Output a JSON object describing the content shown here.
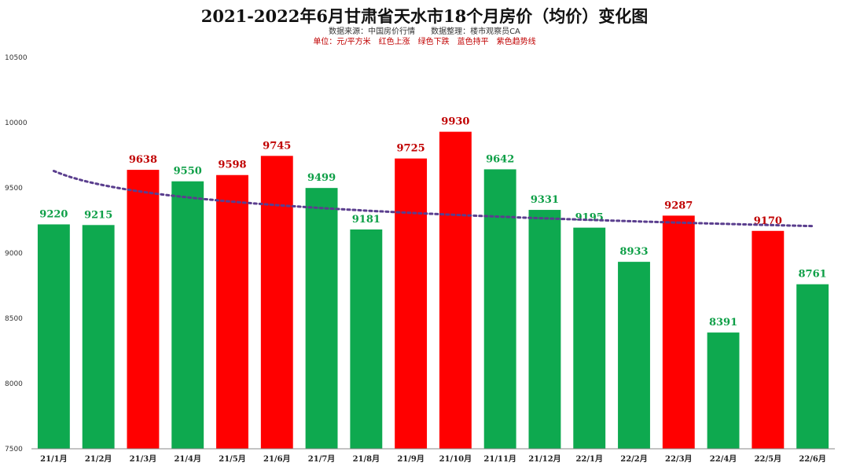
{
  "chart_data": {
    "type": "bar",
    "title": "2021-2022年6月甘肃省天水市18个月房价（均价）变化图",
    "subtitle_source": "数据来源：中国房价行情　　数据整理：楼市观察员CA",
    "subtitle_legend": "单位：元/平方米　红色上涨　绿色下跌　蓝色持平　紫色趋势线",
    "categories": [
      "21/1月",
      "21/2月",
      "21/3月",
      "21/4月",
      "21/5月",
      "21/6月",
      "21/7月",
      "21/8月",
      "21/9月",
      "21/10月",
      "21/11月",
      "21/12月",
      "22/1月",
      "22/2月",
      "22/3月",
      "22/4月",
      "22/5月",
      "22/6月"
    ],
    "values": [
      9220,
      9215,
      9638,
      9550,
      9598,
      9745,
      9499,
      9181,
      9725,
      9930,
      9642,
      9331,
      9195,
      8933,
      9287,
      8391,
      9170,
      8761
    ],
    "bar_colors": [
      "green",
      "green",
      "red",
      "green",
      "red",
      "red",
      "green",
      "green",
      "red",
      "red",
      "green",
      "green",
      "green",
      "green",
      "red",
      "green",
      "red",
      "green"
    ],
    "trendline": {
      "type": "logarithmic",
      "color": "#5a3e8e",
      "style": "dotted"
    },
    "ylim": [
      7500,
      10500
    ],
    "yticks": [
      "7500",
      "8000",
      "8500",
      "9000",
      "9500",
      "10000",
      "10500"
    ],
    "grid": false,
    "colors": {
      "red": "#ff0000",
      "green": "#0ea94f",
      "red_label": "#c00000",
      "green_label": "#0e9f47"
    }
  }
}
